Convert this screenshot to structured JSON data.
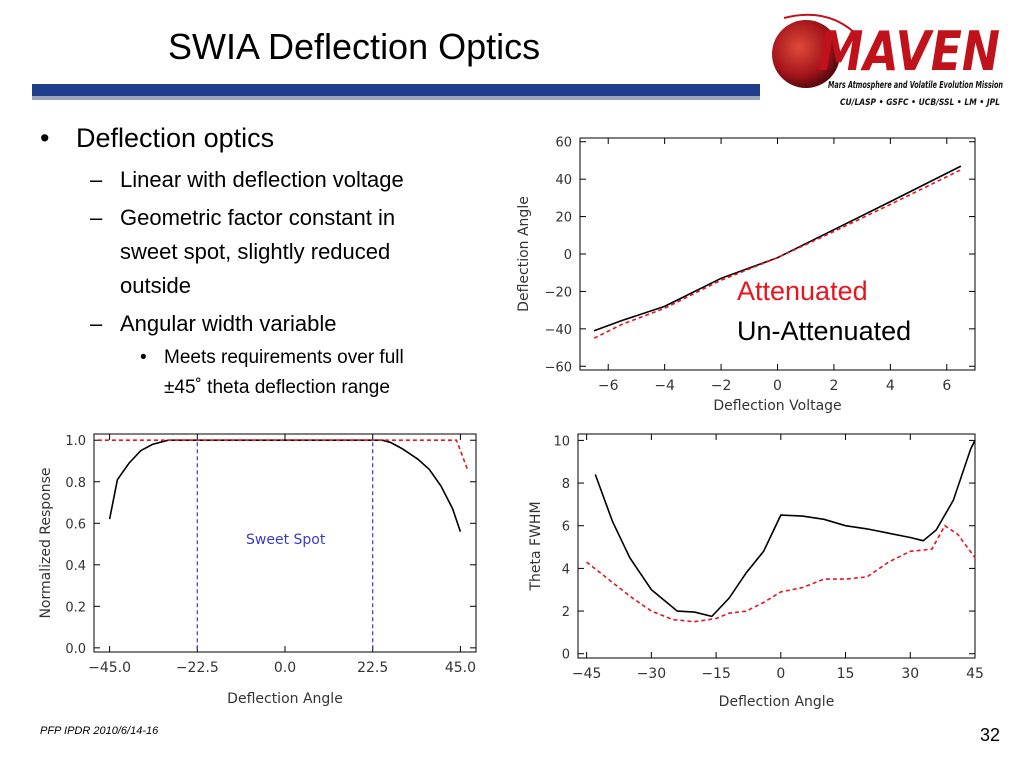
{
  "slide": {
    "title": "SWIA Deflection Optics",
    "footer": "PFP IPDR 2010/6/14-16",
    "page_number": "32",
    "bullets": [
      {
        "level": 1,
        "marker": "•",
        "text": "Deflection optics"
      },
      {
        "level": 2,
        "marker": "–",
        "text": "Linear with deflection voltage"
      },
      {
        "level": 2,
        "marker": "–",
        "text": "Geometric factor constant in"
      },
      {
        "level": 2,
        "marker": "",
        "text": "sweet spot, slightly reduced"
      },
      {
        "level": 2,
        "marker": "",
        "text": "outside"
      },
      {
        "level": 2,
        "marker": "–",
        "text": "Angular width variable"
      },
      {
        "level": 3,
        "marker": "•",
        "text": "Meets requirements over full"
      },
      {
        "level": 3,
        "marker": "",
        "text": "±45˚   theta deflection range"
      }
    ],
    "legend": {
      "attenuated": "Attenuated",
      "unattenuated": "Un-Attenuated"
    },
    "colors": {
      "attenuated": "#e8141e",
      "unattenuated": "#000000",
      "sweet_spot": "#3a3acf",
      "title_rule": "#1f3d8a",
      "logo_red": "#c0121b"
    }
  },
  "logo": {
    "name": "MAVEN",
    "subtitle": "Mars Atmosphere and Volatile Evolution Mission",
    "partners": "CU/LASP • GSFC • UCB/SSL • LM • JPL"
  },
  "chart_data": [
    {
      "type": "line",
      "id": "angle-vs-voltage",
      "xlabel": "Deflection Voltage",
      "ylabel": "Deflection Angle",
      "xlim": [
        -7,
        7
      ],
      "ylim": [
        -62,
        62
      ],
      "xticks": [
        -6,
        -4,
        -2,
        0,
        2,
        4,
        6
      ],
      "yticks": [
        -60,
        -40,
        -20,
        0,
        20,
        40,
        60
      ],
      "series": [
        {
          "x": [
            -6.5,
            -5.5,
            -4,
            -2,
            0,
            2,
            4,
            6.5
          ],
          "y": [
            -41,
            -35.5,
            -28,
            -13,
            -2,
            13,
            28,
            47
          ]
        },
        {
          "x": [
            -6.5,
            -5.5,
            -4,
            -2,
            0,
            2,
            4,
            6.5
          ],
          "y": [
            -45,
            -37.5,
            -29,
            -14,
            -2,
            12,
            26.5,
            45
          ]
        }
      ]
    },
    {
      "type": "line",
      "id": "response-vs-angle",
      "xlabel": "Deflection Angle",
      "ylabel": "Normalized Response",
      "xlim": [
        -49,
        49
      ],
      "ylim": [
        -0.02,
        1.03
      ],
      "xticks": [
        -45,
        -22.5,
        0,
        22.5,
        45
      ],
      "xtick_labels": [
        "−45.0",
        "−22.5",
        "0.0",
        "22.5",
        "45.0"
      ],
      "yticks": [
        0,
        0.2,
        0.4,
        0.6,
        0.8,
        1.0
      ],
      "ytick_labels": [
        "0.0",
        "0.2",
        "0.4",
        "0.6",
        "0.8",
        "1.0"
      ],
      "annotation": "Sweet Spot",
      "sweet_spot_lines": [
        -22.5,
        22.5
      ],
      "series": [
        {
          "x": [
            -45,
            -43,
            -40,
            -37,
            -34,
            -30,
            -27,
            -25,
            -22.5,
            -15,
            0,
            15,
            22.5,
            25,
            27,
            30,
            34,
            37,
            40,
            43,
            45
          ],
          "y": [
            0.62,
            0.81,
            0.89,
            0.95,
            0.98,
            1.0,
            1.0,
            1.0,
            1.0,
            1.0,
            1.0,
            1.0,
            1.0,
            1.0,
            0.99,
            0.96,
            0.91,
            0.86,
            0.78,
            0.67,
            0.56
          ]
        },
        {
          "x": [
            -48,
            44,
            47
          ],
          "y": [
            1.0,
            1.0,
            0.85
          ]
        }
      ]
    },
    {
      "type": "line",
      "id": "fwhm-vs-angle",
      "xlabel": "Deflection Angle",
      "ylabel": "Theta FWHM",
      "xlim": [
        -47,
        45
      ],
      "ylim": [
        -0.2,
        10.3
      ],
      "xticks": [
        -45,
        -30,
        -15,
        0,
        15,
        30,
        45
      ],
      "xtick_labels": [
        "−45",
        "−30",
        "−15",
        "0",
        "15",
        "30",
        "45"
      ],
      "yticks": [
        0,
        2,
        4,
        6,
        8,
        10
      ],
      "series": [
        {
          "x": [
            -43,
            -39,
            -35,
            -30,
            -27,
            -24,
            -20,
            -16,
            -12,
            -8,
            -4,
            0,
            5,
            10,
            15,
            20,
            25,
            30,
            33,
            36,
            40,
            44,
            45
          ],
          "y": [
            8.4,
            6.2,
            4.5,
            3.0,
            2.5,
            2.0,
            1.95,
            1.75,
            2.6,
            3.8,
            4.8,
            6.5,
            6.45,
            6.3,
            6.0,
            5.85,
            5.65,
            5.45,
            5.3,
            5.8,
            7.2,
            9.6,
            10.0
          ]
        },
        {
          "x": [
            -45,
            -40,
            -35,
            -30,
            -25,
            -20,
            -15,
            -12,
            -8,
            -4,
            0,
            5,
            10,
            15,
            20,
            25,
            30,
            35,
            38,
            41,
            45
          ],
          "y": [
            4.3,
            3.5,
            2.7,
            2.0,
            1.6,
            1.5,
            1.65,
            1.9,
            2.0,
            2.4,
            2.9,
            3.1,
            3.5,
            3.5,
            3.6,
            4.3,
            4.8,
            4.9,
            6.0,
            5.6,
            4.5
          ]
        }
      ]
    }
  ]
}
